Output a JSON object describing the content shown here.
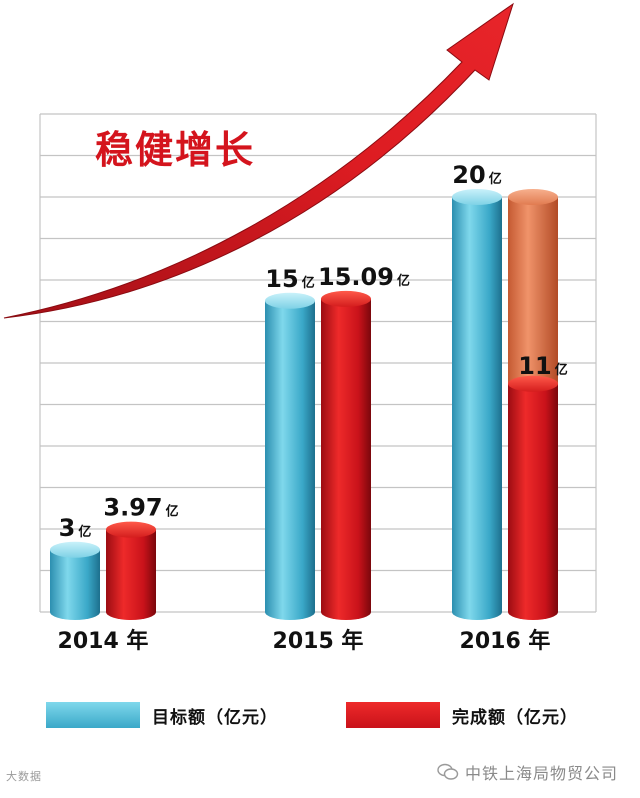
{
  "colors": {
    "target": "#4fc2dc",
    "complete": "#d4141d",
    "complete_remaining": "#e2784a",
    "arrow": "#d4141d",
    "grid": "#b8b8b8"
  },
  "chart_data": {
    "type": "bar",
    "title": "稳健增长",
    "categories": [
      "2014 年",
      "2015 年",
      "2016 年"
    ],
    "series": [
      {
        "name": "目标额（亿元）",
        "values": [
          3,
          15,
          20
        ],
        "labels": [
          "3",
          "15",
          "20"
        ]
      },
      {
        "name": "完成额（亿元）",
        "values": [
          3.97,
          15.09,
          11
        ],
        "labels": [
          "3.97",
          "15.09",
          "11"
        ]
      }
    ],
    "unit": "亿",
    "ylim": [
      0,
      24
    ],
    "grid": true,
    "legend": "bottom"
  },
  "legend": {
    "target_label": "目标额（亿元）",
    "complete_label": "完成额（亿元）"
  },
  "watermark": {
    "left": "大数据",
    "right": "中铁上海局物贸公司"
  }
}
